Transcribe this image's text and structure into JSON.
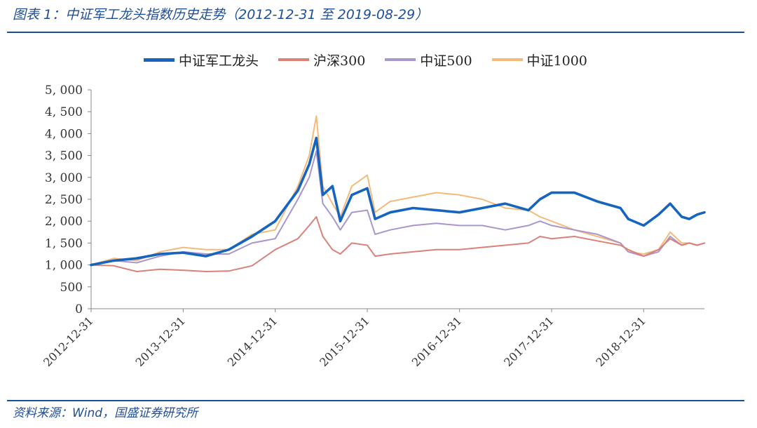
{
  "figure": {
    "title": "图表 1：中证军工龙头指数历史走势（2012-12-31 至 2019-08-29）",
    "source": "资料来源：Wind，国盛证券研究所"
  },
  "chart_data": {
    "type": "line",
    "title": "",
    "xlabel": "",
    "ylabel": "",
    "ylim": [
      0,
      5000
    ],
    "y_ticks": [
      0,
      500,
      1000,
      1500,
      2000,
      2500,
      3000,
      3500,
      4000,
      4500,
      5000
    ],
    "y_tick_labels": [
      "0",
      "500",
      "1, 000",
      "1, 500",
      "2, 000",
      "2, 500",
      "3, 000",
      "3, 500",
      "4, 000",
      "4, 500",
      "5, 000"
    ],
    "x_tick_labels": [
      "2012-12-31",
      "2013-12-31",
      "2014-12-31",
      "2015-12-31",
      "2016-12-31",
      "2017-12-31",
      "2018-12-31"
    ],
    "x_range": [
      "2012-12-31",
      "2019-08-29"
    ],
    "legend_position": "top",
    "grid": false,
    "x": [
      "2012-12-31",
      "2013-03-31",
      "2013-06-30",
      "2013-09-30",
      "2013-12-31",
      "2014-03-31",
      "2014-06-30",
      "2014-09-30",
      "2014-12-31",
      "2015-03-31",
      "2015-05-15",
      "2015-06-12",
      "2015-07-08",
      "2015-08-15",
      "2015-09-15",
      "2015-10-31",
      "2015-12-31",
      "2016-01-31",
      "2016-03-31",
      "2016-06-30",
      "2016-09-30",
      "2016-12-31",
      "2017-03-31",
      "2017-06-30",
      "2017-09-30",
      "2017-11-15",
      "2017-12-31",
      "2018-03-31",
      "2018-06-30",
      "2018-09-30",
      "2018-10-31",
      "2018-12-31",
      "2019-02-28",
      "2019-04-15",
      "2019-05-31",
      "2019-06-30",
      "2019-07-31",
      "2019-08-29"
    ],
    "series": [
      {
        "name": "中证军工龙头",
        "color": "#1565c0",
        "width": 3.6,
        "values": [
          1000,
          1100,
          1150,
          1250,
          1280,
          1200,
          1350,
          1650,
          2000,
          2700,
          3300,
          3900,
          2600,
          2800,
          2000,
          2600,
          2750,
          2050,
          2200,
          2300,
          2250,
          2200,
          2300,
          2400,
          2250,
          2500,
          2650,
          2650,
          2450,
          2300,
          2050,
          1900,
          2150,
          2400,
          2100,
          2050,
          2150,
          2200
        ]
      },
      {
        "name": "沪深300",
        "color": "#d9827a",
        "width": 2,
        "values": [
          1000,
          980,
          850,
          900,
          880,
          850,
          860,
          980,
          1350,
          1600,
          1900,
          2100,
          1650,
          1350,
          1250,
          1500,
          1450,
          1200,
          1250,
          1300,
          1350,
          1350,
          1400,
          1450,
          1500,
          1650,
          1600,
          1650,
          1550,
          1450,
          1350,
          1200,
          1350,
          1600,
          1450,
          1500,
          1450,
          1500
        ]
      },
      {
        "name": "中证500",
        "color": "#a896cc",
        "width": 2,
        "values": [
          1000,
          1100,
          1050,
          1200,
          1300,
          1250,
          1250,
          1500,
          1600,
          2500,
          3000,
          3600,
          2400,
          2100,
          1800,
          2200,
          2250,
          1700,
          1800,
          1900,
          1950,
          1900,
          1900,
          1800,
          1900,
          2000,
          1900,
          1800,
          1700,
          1500,
          1300,
          1200,
          1300,
          1650,
          1450,
          1500,
          1450,
          1500
        ]
      },
      {
        "name": "中证1000",
        "color": "#f5b97a",
        "width": 2,
        "values": [
          1000,
          1150,
          1100,
          1300,
          1400,
          1350,
          1350,
          1700,
          1800,
          2800,
          3500,
          4400,
          2800,
          2400,
          2100,
          2800,
          3050,
          2200,
          2450,
          2550,
          2650,
          2600,
          2500,
          2300,
          2250,
          2100,
          2000,
          1800,
          1650,
          1500,
          1300,
          1250,
          1350,
          1750,
          1500,
          1500,
          1450,
          1500
        ]
      }
    ]
  }
}
